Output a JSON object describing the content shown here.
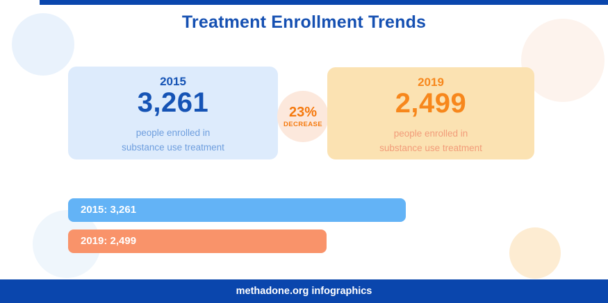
{
  "page": {
    "title": "Treatment Enrollment Trends",
    "footer": "methadone.org infographics"
  },
  "cards": [
    {
      "year": "2015",
      "value": "3,261",
      "caption_line1": "people enrolled in",
      "caption_line2": "substance use treatment"
    },
    {
      "year": "2019",
      "value": "2,499",
      "caption_line1": "people enrolled in",
      "caption_line2": "substance use treatment"
    }
  ],
  "badge": {
    "percent": "23%",
    "label": "DECREASE"
  },
  "chart_data": {
    "type": "bar",
    "orientation": "horizontal",
    "title": "Treatment Enrollment Trends",
    "categories": [
      "2015",
      "2019"
    ],
    "values": [
      3261,
      2499
    ],
    "bars": [
      {
        "label": "2015: 3,261",
        "value": 3261,
        "color": "#63b3f6"
      },
      {
        "label": "2019: 2,499",
        "value": 2499,
        "color": "#f9936a"
      }
    ],
    "change": {
      "percent": -23,
      "label": "23% DECREASE"
    },
    "xlim": [
      0,
      3261
    ],
    "grid": false,
    "legend": false
  },
  "colors": {
    "navy_accent": "#0a46ad",
    "title_blue": "#1550b2",
    "card_2015_bg": "#ddebfc",
    "card_2015_text": "#1553b5",
    "card_2015_caption": "#6e9ede",
    "card_2019_bg": "#fbe2b2",
    "card_2019_text": "#f7871c",
    "card_2019_caption": "#f29c79",
    "badge_bg": "#fce8dc",
    "badge_text": "#f5790d",
    "bar_2015": "#63b3f6",
    "bar_2019": "#f9936a",
    "footer_bg": "#0a46ad",
    "footer_text": "#ffffff"
  }
}
